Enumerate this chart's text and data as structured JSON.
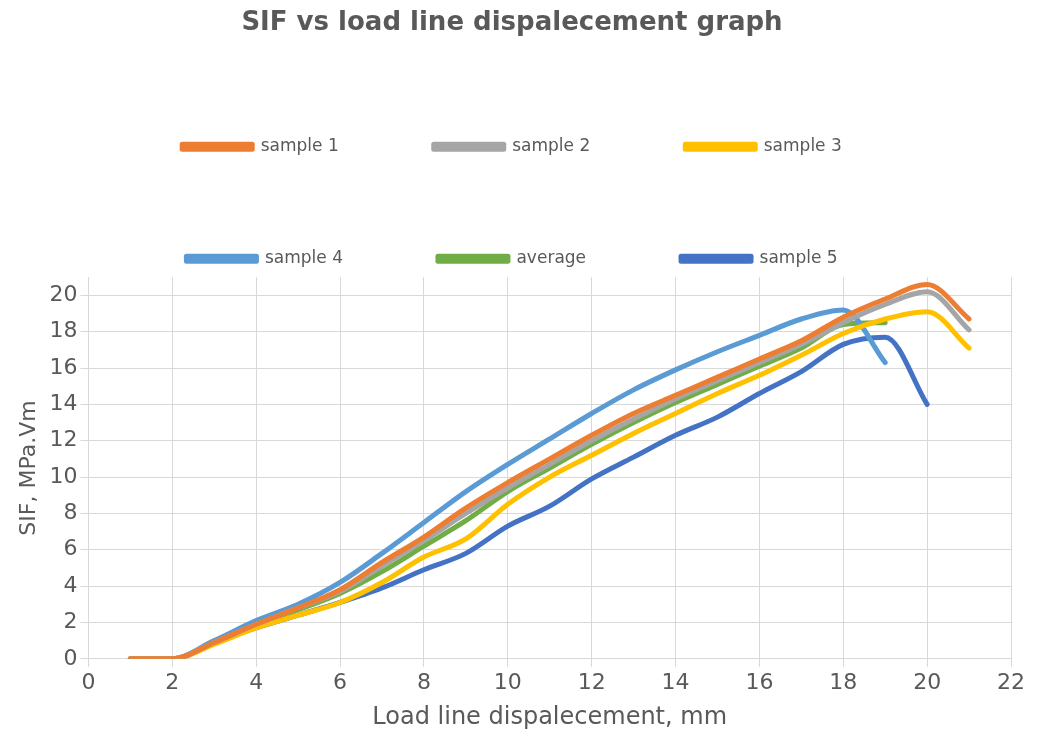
{
  "chart_data": {
    "type": "line",
    "title": "SIF vs load line dispalecement graph",
    "xlabel": "Load line dispalecement, mm",
    "ylabel": "SIF, MPa.Vm",
    "x": [
      1,
      2,
      3,
      4,
      5,
      6,
      7,
      8,
      9,
      10,
      11,
      12,
      13,
      14,
      15,
      16,
      17,
      18,
      19,
      20,
      21
    ],
    "series": [
      {
        "name": "sample 1",
        "color": "#ed7d31",
        "values": [
          0,
          0,
          0.9,
          1.9,
          2.8,
          3.8,
          5.3,
          6.7,
          8.3,
          9.7,
          11,
          12.3,
          13.5,
          14.5,
          15.5,
          16.5,
          17.5,
          18.8,
          19.8,
          20.6,
          18.7
        ]
      },
      {
        "name": "sample 2",
        "color": "#a5a5a5",
        "values": [
          0,
          0,
          0.9,
          1.9,
          2.8,
          3.7,
          5.1,
          6.5,
          8,
          9.4,
          10.7,
          12,
          13.2,
          14.3,
          15.3,
          16.3,
          17.3,
          18.5,
          19.5,
          20.2,
          18.1
        ]
      },
      {
        "name": "sample 3",
        "color": "#ffc000",
        "values": [
          0,
          0,
          0.8,
          1.7,
          2.4,
          3.1,
          4.2,
          5.6,
          6.6,
          8.5,
          10,
          11.2,
          12.4,
          13.5,
          14.6,
          15.6,
          16.7,
          17.9,
          18.7,
          19.1,
          17.1
        ]
      },
      {
        "name": "sample 4",
        "color": "#5b9bd5",
        "values": [
          0,
          0,
          1,
          2.1,
          3,
          4.2,
          5.8,
          7.5,
          9.2,
          10.7,
          12.1,
          13.5,
          14.8,
          15.9,
          16.9,
          17.8,
          18.7,
          19.2,
          16.3,
          null,
          null
        ]
      },
      {
        "name": "average",
        "color": "#70ad47",
        "values": [
          null,
          null,
          0.9,
          1.9,
          2.7,
          3.6,
          4.8,
          6.2,
          7.6,
          9.2,
          10.5,
          11.8,
          13,
          14.1,
          15.1,
          16.1,
          17.1,
          18.4,
          18.5,
          null,
          null
        ]
      },
      {
        "name": "sample 5",
        "color": "#4472c4",
        "values": [
          0,
          0,
          0.9,
          1.7,
          2.4,
          3.1,
          3.9,
          4.9,
          5.8,
          7.3,
          8.4,
          9.9,
          11.1,
          12.3,
          13.3,
          14.6,
          15.8,
          17.3,
          17.7,
          14,
          null
        ]
      }
    ],
    "xlim": [
      0,
      22
    ],
    "xticks": [
      0,
      2,
      4,
      6,
      8,
      10,
      12,
      14,
      16,
      18,
      20,
      22
    ],
    "ylim": [
      0,
      21
    ],
    "yticks": [
      0,
      2,
      4,
      6,
      8,
      10,
      12,
      14,
      16,
      18,
      20
    ],
    "grid": true,
    "legend": "top",
    "marker": "none",
    "line_style": "solid"
  }
}
